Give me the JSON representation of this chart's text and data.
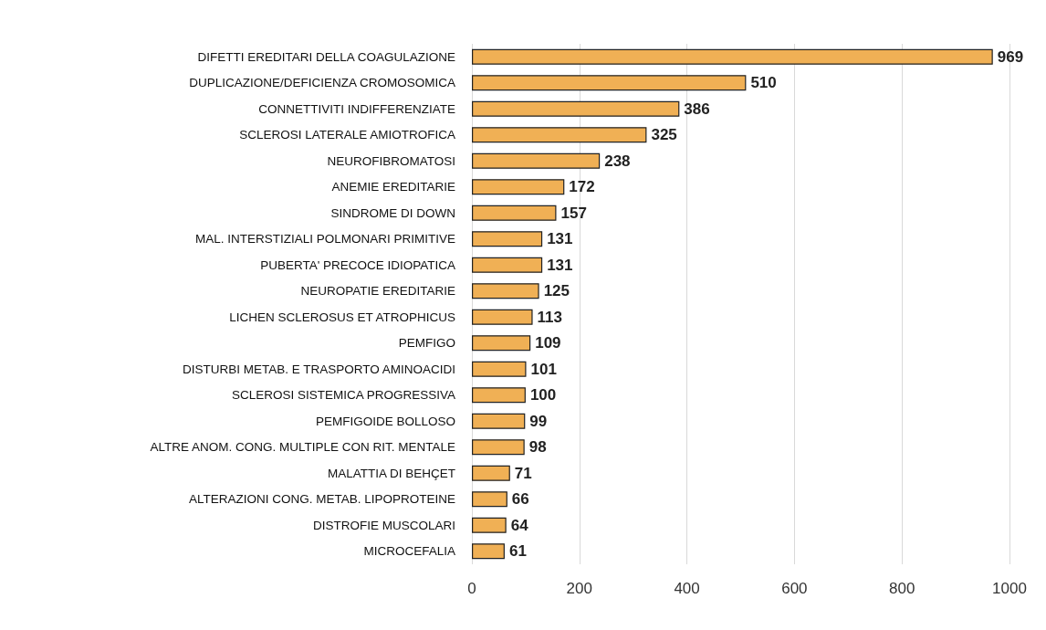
{
  "chart_data": {
    "type": "bar",
    "orientation": "horizontal",
    "categories": [
      "DIFETTI EREDITARI DELLA COAGULAZIONE",
      "DUPLICAZIONE/DEFICIENZA CROMOSOMICA",
      "CONNETTIVITI INDIFFERENZIATE",
      "SCLEROSI LATERALE AMIOTROFICA",
      "NEUROFIBROMATOSI",
      "ANEMIE EREDITARIE",
      "SINDROME DI DOWN",
      "MAL. INTERSTIZIALI POLMONARI PRIMITIVE",
      "PUBERTA' PRECOCE IDIOPATICA",
      "NEUROPATIE EREDITARIE",
      "LICHEN SCLEROSUS ET ATROPHICUS",
      "PEMFIGO",
      "DISTURBI METAB. E TRASPORTO AMINOACIDI",
      "SCLEROSI SISTEMICA PROGRESSIVA",
      "PEMFIGOIDE BOLLOSO",
      "ALTRE ANOM. CONG. MULTIPLE CON RIT. MENTALE",
      "MALATTIA DI BEHÇET",
      "ALTERAZIONI CONG. METAB. LIPOPROTEINE",
      "DISTROFIE MUSCOLARI",
      "MICROCEFALIA"
    ],
    "values": [
      969,
      510,
      386,
      325,
      238,
      172,
      157,
      131,
      131,
      125,
      113,
      109,
      101,
      100,
      99,
      98,
      71,
      66,
      64,
      61
    ],
    "color": "#f0b055",
    "xlim": [
      0,
      1000
    ],
    "xticks": [
      0,
      200,
      400,
      600,
      800,
      1000
    ],
    "grid": "x",
    "data_labels": true
  }
}
